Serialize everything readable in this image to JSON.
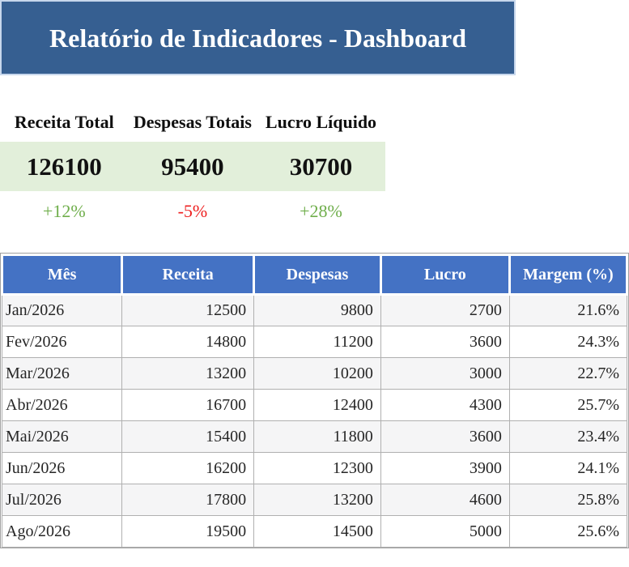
{
  "header": {
    "title": "Relatório de Indicadores - Dashboard"
  },
  "kpis": [
    {
      "label": "Receita Total",
      "value": "126100",
      "delta": "+12%",
      "trend": "up"
    },
    {
      "label": "Despesas Totais",
      "value": "95400",
      "delta": "-5%",
      "trend": "down"
    },
    {
      "label": "Lucro Líquido",
      "value": "30700",
      "delta": "+28%",
      "trend": "up"
    }
  ],
  "table": {
    "columns": [
      "Mês",
      "Receita",
      "Despesas",
      "Lucro",
      "Margem (%)"
    ],
    "column_widths_pct": [
      19.2,
      21.1,
      20.3,
      20.6,
      18.8
    ],
    "rows": [
      [
        "Jan/2026",
        "12500",
        "9800",
        "2700",
        "21.6%"
      ],
      [
        "Fev/2026",
        "14800",
        "11200",
        "3600",
        "24.3%"
      ],
      [
        "Mar/2026",
        "13200",
        "10200",
        "3000",
        "22.7%"
      ],
      [
        "Abr/2026",
        "16700",
        "12400",
        "4300",
        "25.7%"
      ],
      [
        "Mai/2026",
        "15400",
        "11800",
        "3600",
        "23.4%"
      ],
      [
        "Jun/2026",
        "16200",
        "12300",
        "3900",
        "24.1%"
      ],
      [
        "Jul/2026",
        "17800",
        "13200",
        "4600",
        "25.8%"
      ],
      [
        "Ago/2026",
        "19500",
        "14500",
        "5000",
        "25.6%"
      ]
    ]
  },
  "colors": {
    "banner_bg": "#365F91",
    "banner_border": "#C7D7EC",
    "kpi_box_bg": "#E2EFDA",
    "table_header_bg": "#4472C4",
    "positive": "#6FAE4B",
    "negative": "#EE2020"
  }
}
